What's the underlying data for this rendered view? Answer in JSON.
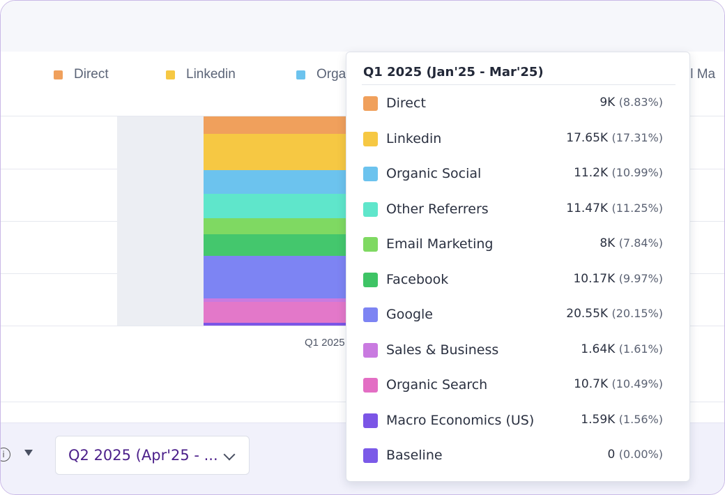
{
  "legend": [
    {
      "label": "Direct",
      "color": "#f0a05c"
    },
    {
      "label": "Linkedin",
      "color": "#f6c843"
    },
    {
      "label": "Orga",
      "color": "#6cc3ee"
    },
    {
      "label": "il Ma",
      "color": ""
    }
  ],
  "x_tick": "Q1 2025",
  "bar_colors": {
    "direct": "#f0a05c",
    "linkedin": "#f6c843",
    "organic_social": "#6cc3ee",
    "other_referrers": "#5fe6cb",
    "email_marketing": "#7fd962",
    "facebook": "#44c76d",
    "google": "#7d84f3",
    "organic_search": "#e378c9",
    "baseline": "#7d63e8"
  },
  "tooltip": {
    "title": "Q1 2025 (Jan'25 - Mar'25)",
    "rows": [
      {
        "label": "Direct",
        "value": "9K",
        "pct": "(8.83%)",
        "color": "#f0a05c"
      },
      {
        "label": "Linkedin",
        "value": "17.65K",
        "pct": "(17.31%)",
        "color": "#f6c843"
      },
      {
        "label": "Organic Social",
        "value": "11.2K",
        "pct": "(10.99%)",
        "color": "#6cc3ee"
      },
      {
        "label": "Other Referrers",
        "value": "11.47K",
        "pct": "(11.25%)",
        "color": "#5fe6cb"
      },
      {
        "label": "Email Marketing",
        "value": "8K",
        "pct": "(7.84%)",
        "color": "#7fd962"
      },
      {
        "label": "Facebook",
        "value": "10.17K",
        "pct": "(9.97%)",
        "color": "#3ec465"
      },
      {
        "label": "Google",
        "value": "20.55K",
        "pct": "(20.15%)",
        "color": "#7d84f3"
      },
      {
        "label": "Sales & Business",
        "value": "1.64K",
        "pct": "(1.61%)",
        "color": "#c97ae0"
      },
      {
        "label": "Organic Search",
        "value": "10.7K",
        "pct": "(10.49%)",
        "color": "#e36ec4"
      },
      {
        "label": "Macro Economics (US)",
        "value": "1.59K",
        "pct": "(1.56%)",
        "color": "#7b55e6"
      },
      {
        "label": "Baseline",
        "value": "0",
        "pct": "(0.00%)",
        "color": "#7b5ae8"
      }
    ]
  },
  "bottom": {
    "info_icon": "i",
    "period_select": "Q2 2025 (Apr'25 - ..."
  }
}
